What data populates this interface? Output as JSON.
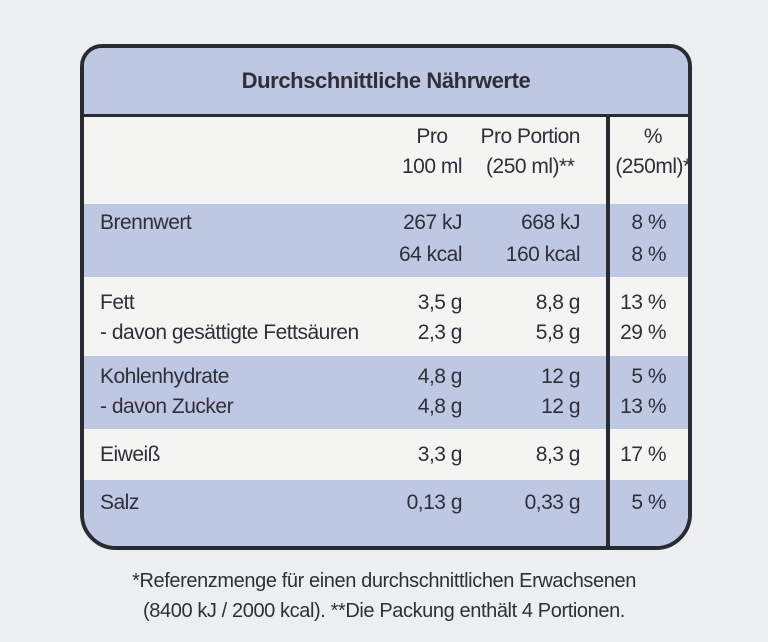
{
  "title": "Durchschnittliche Nährwerte",
  "header": {
    "col_100_line1": "Pro",
    "col_100_line2": "100 ml",
    "col_portion_line1": "Pro Portion",
    "col_portion_line2": "(250 ml)**",
    "col_pct_line1": "%",
    "col_pct_line2": "(250ml)*"
  },
  "rows": [
    {
      "label": "Brennwert",
      "per100": "267 kJ",
      "portion": "668 kJ",
      "pct": "8 %"
    },
    {
      "label": "",
      "per100": "64 kcal",
      "portion": "160 kcal",
      "pct": "8 %"
    },
    {
      "label": "Fett",
      "per100": "3,5 g",
      "portion": "8,8 g",
      "pct": "13 %"
    },
    {
      "label": "- davon gesättigte Fettsäuren",
      "per100": "2,3 g",
      "portion": "5,8 g",
      "pct": "29 %"
    },
    {
      "label": "Kohlenhydrate",
      "per100": "4,8 g",
      "portion": "12 g",
      "pct": "5 %"
    },
    {
      "label": "- davon Zucker",
      "per100": "4,8 g",
      "portion": "12 g",
      "pct": "13 %"
    },
    {
      "label": "Eiweiß",
      "per100": "3,3 g",
      "portion": "8,3 g",
      "pct": "17 %"
    },
    {
      "label": "Salz",
      "per100": "0,13 g",
      "portion": "0,33 g",
      "pct": "5 %"
    }
  ],
  "footnote": {
    "line1": "*Referenzmenge für einen durchschnittlichen Erwachsenen",
    "line2": "(8400 kJ / 2000 kcal). **Die Packung enthält 4 Portionen."
  },
  "colors": {
    "band": "#bec8e3",
    "border": "#2a2a33",
    "paper": "#f4f4f2",
    "background": "#eceff0"
  }
}
